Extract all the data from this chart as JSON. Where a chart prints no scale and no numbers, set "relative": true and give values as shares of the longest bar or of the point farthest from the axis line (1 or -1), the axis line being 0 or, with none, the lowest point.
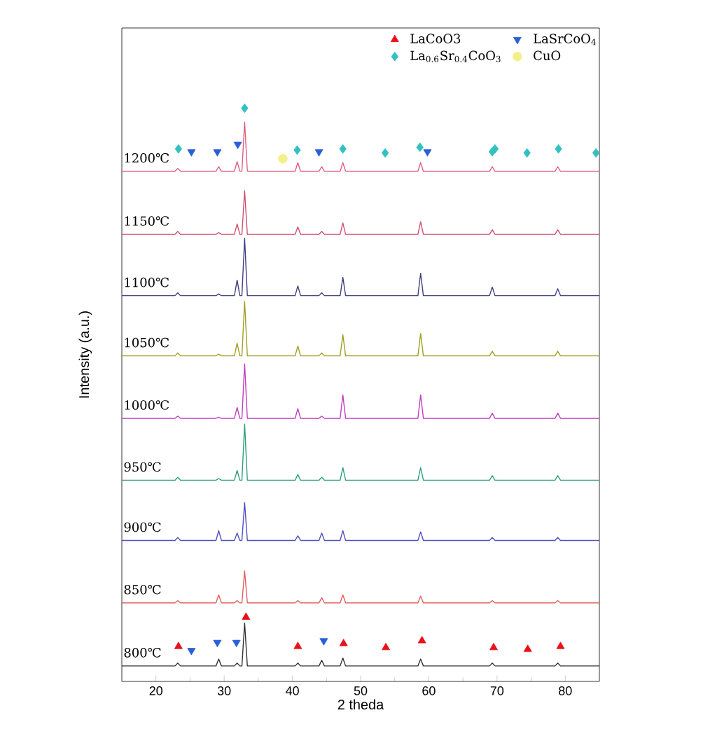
{
  "chart_data": {
    "type": "line",
    "relative": true,
    "xlabel": "2 theda",
    "ylabel": "Intensity (a.u.)",
    "xlim": [
      15,
      85
    ],
    "xticks": [
      20,
      30,
      40,
      50,
      60,
      70,
      80
    ],
    "tick_labels": "x",
    "legend": "top right",
    "grid": false,
    "x": [
      15,
      22.8,
      23.2,
      23.6,
      28.8,
      29.2,
      29.6,
      31.5,
      31.9,
      32.3,
      32.6,
      33.0,
      33.4,
      40.4,
      40.8,
      41.2,
      43.9,
      44.3,
      44.7,
      47.0,
      47.4,
      47.8,
      58.4,
      58.8,
      59.2,
      68.9,
      69.3,
      69.7,
      78.5,
      78.9,
      79.3,
      85
    ],
    "series": [
      {
        "name": "800℃",
        "color": "#333333",
        "values": [
          0.027,
          0.027,
          0.032,
          0.027,
          0.027,
          0.039,
          0.027,
          0.027,
          0.032,
          0.027,
          0.027,
          0.102,
          0.027,
          0.027,
          0.032,
          0.027,
          0.027,
          0.037,
          0.027,
          0.027,
          0.041,
          0.027,
          0.027,
          0.039,
          0.027,
          0.027,
          0.032,
          0.027,
          0.027,
          0.032,
          0.027,
          0.027
        ]
      },
      {
        "name": "850℃",
        "color": "#e06060",
        "values": [
          0.137,
          0.137,
          0.141,
          0.137,
          0.137,
          0.151,
          0.137,
          0.137,
          0.141,
          0.137,
          0.137,
          0.193,
          0.137,
          0.137,
          0.141,
          0.137,
          0.137,
          0.146,
          0.137,
          0.137,
          0.151,
          0.137,
          0.137,
          0.149,
          0.137,
          0.137,
          0.141,
          0.137,
          0.137,
          0.141,
          0.137,
          0.137
        ]
      },
      {
        "name": "900℃",
        "color": "#5050c0",
        "values": [
          0.246,
          0.246,
          0.251,
          0.246,
          0.246,
          0.263,
          0.246,
          0.246,
          0.259,
          0.246,
          0.246,
          0.312,
          0.246,
          0.246,
          0.254,
          0.246,
          0.246,
          0.259,
          0.246,
          0.246,
          0.263,
          0.246,
          0.246,
          0.261,
          0.246,
          0.246,
          0.251,
          0.246,
          0.246,
          0.251,
          0.246,
          0.246
        ]
      },
      {
        "name": "950℃",
        "color": "#2e9e7e",
        "values": [
          0.351,
          0.351,
          0.356,
          0.351,
          0.351,
          0.354,
          0.351,
          0.351,
          0.368,
          0.351,
          0.351,
          0.449,
          0.351,
          0.351,
          0.361,
          0.351,
          0.351,
          0.356,
          0.351,
          0.351,
          0.373,
          0.351,
          0.351,
          0.373,
          0.351,
          0.351,
          0.359,
          0.351,
          0.351,
          0.359,
          0.351,
          0.351
        ]
      },
      {
        "name": "1000℃",
        "color": "#c040c0",
        "values": [
          0.459,
          0.459,
          0.463,
          0.459,
          0.459,
          0.461,
          0.459,
          0.459,
          0.478,
          0.459,
          0.459,
          0.554,
          0.459,
          0.459,
          0.476,
          0.459,
          0.459,
          0.463,
          0.459,
          0.459,
          0.5,
          0.459,
          0.459,
          0.5,
          0.459,
          0.459,
          0.468,
          0.459,
          0.459,
          0.468,
          0.459,
          0.459
        ]
      },
      {
        "name": "1050℃",
        "color": "#a0a020",
        "values": [
          0.568,
          0.568,
          0.573,
          0.568,
          0.568,
          0.571,
          0.568,
          0.568,
          0.59,
          0.568,
          0.568,
          0.663,
          0.568,
          0.568,
          0.585,
          0.568,
          0.568,
          0.573,
          0.568,
          0.568,
          0.605,
          0.568,
          0.568,
          0.607,
          0.568,
          0.568,
          0.576,
          0.568,
          0.568,
          0.576,
          0.568,
          0.568
        ]
      },
      {
        "name": "1100℃",
        "color": "#404080",
        "values": [
          0.673,
          0.673,
          0.678,
          0.673,
          0.673,
          0.676,
          0.673,
          0.673,
          0.7,
          0.673,
          0.673,
          0.773,
          0.673,
          0.673,
          0.69,
          0.673,
          0.673,
          0.678,
          0.673,
          0.673,
          0.705,
          0.673,
          0.673,
          0.712,
          0.673,
          0.673,
          0.688,
          0.673,
          0.673,
          0.685,
          0.673,
          0.673
        ]
      },
      {
        "name": "1150℃",
        "color": "#d05070",
        "values": [
          0.78,
          0.78,
          0.785,
          0.78,
          0.78,
          0.783,
          0.78,
          0.78,
          0.798,
          0.78,
          0.78,
          0.856,
          0.78,
          0.78,
          0.793,
          0.78,
          0.78,
          0.785,
          0.78,
          0.78,
          0.8,
          0.78,
          0.78,
          0.802,
          0.78,
          0.78,
          0.788,
          0.78,
          0.78,
          0.788,
          0.78,
          0.78
        ]
      },
      {
        "name": "1200℃",
        "color": "#e06080",
        "values": [
          0.89,
          0.89,
          0.895,
          0.89,
          0.89,
          0.898,
          0.89,
          0.89,
          0.907,
          0.89,
          0.89,
          0.976,
          0.89,
          0.89,
          0.905,
          0.89,
          0.89,
          0.898,
          0.89,
          0.89,
          0.905,
          0.89,
          0.89,
          0.905,
          0.89,
          0.89,
          0.898,
          0.89,
          0.89,
          0.898,
          0.89,
          0.89
        ]
      },
      {
        "name": "LaCoO3",
        "type": "scatter",
        "marker": "triangle",
        "color": "#e8101a",
        "x": [
          23.3,
          33.2,
          40.8,
          47.5,
          53.7,
          59.0,
          69.5,
          74.5,
          79.3
        ],
        "values": [
          0.061,
          0.112,
          0.061,
          0.066,
          0.059,
          0.071,
          0.059,
          0.056,
          0.061
        ]
      },
      {
        "name": "LaSrCoO$_{4}$",
        "type": "scatter",
        "marker": "triangle_down",
        "color": "#2a5fd8",
        "x": [
          25.2,
          29.0,
          31.8,
          44.6,
          25.2,
          29.0,
          32.0,
          43.9,
          59.8
        ],
        "values": [
          0.054,
          0.068,
          0.068,
          0.071,
          0.924,
          0.924,
          0.937,
          0.924,
          0.924
        ]
      },
      {
        "name": "La$_{0.6}$Sr$_{0.4}$CoO$_{3}$",
        "type": "scatter",
        "marker": "diamond",
        "color": "#33c0c0",
        "x": [
          23.3,
          33.0,
          40.7,
          47.4,
          53.6,
          58.7,
          69.3,
          69.7,
          74.4,
          79.0,
          84.5
        ],
        "values": [
          0.929,
          1.0,
          0.927,
          0.929,
          0.922,
          0.932,
          0.924,
          0.929,
          0.922,
          0.929,
          0.922
        ]
      },
      {
        "name": "CuO",
        "type": "scatter",
        "marker": "circle",
        "color": "#f5ef8a",
        "x": [
          38.6
        ],
        "values": [
          0.912
        ]
      }
    ]
  }
}
